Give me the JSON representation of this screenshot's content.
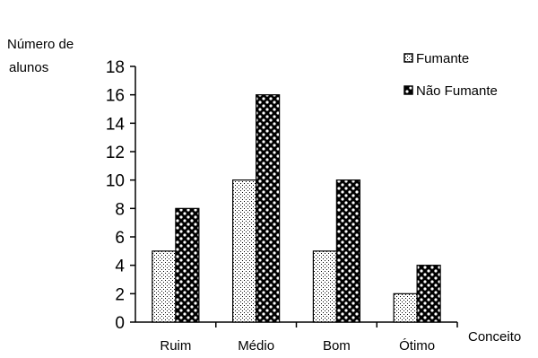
{
  "chart_data": {
    "type": "bar",
    "categories": [
      "Ruim",
      "Médio",
      "Bom",
      "Ótimo"
    ],
    "series": [
      {
        "name": "Fumante",
        "values": [
          5,
          10,
          5,
          2
        ]
      },
      {
        "name": "Não Fumante",
        "values": [
          8,
          16,
          10,
          4
        ]
      }
    ],
    "ylabel": "Número de alunos",
    "xlabel": "Conceito",
    "ylim": [
      0,
      18
    ],
    "yticks": [
      0,
      2,
      4,
      6,
      8,
      10,
      12,
      14,
      16,
      18
    ],
    "grid": false,
    "legend_position": "top-right"
  }
}
